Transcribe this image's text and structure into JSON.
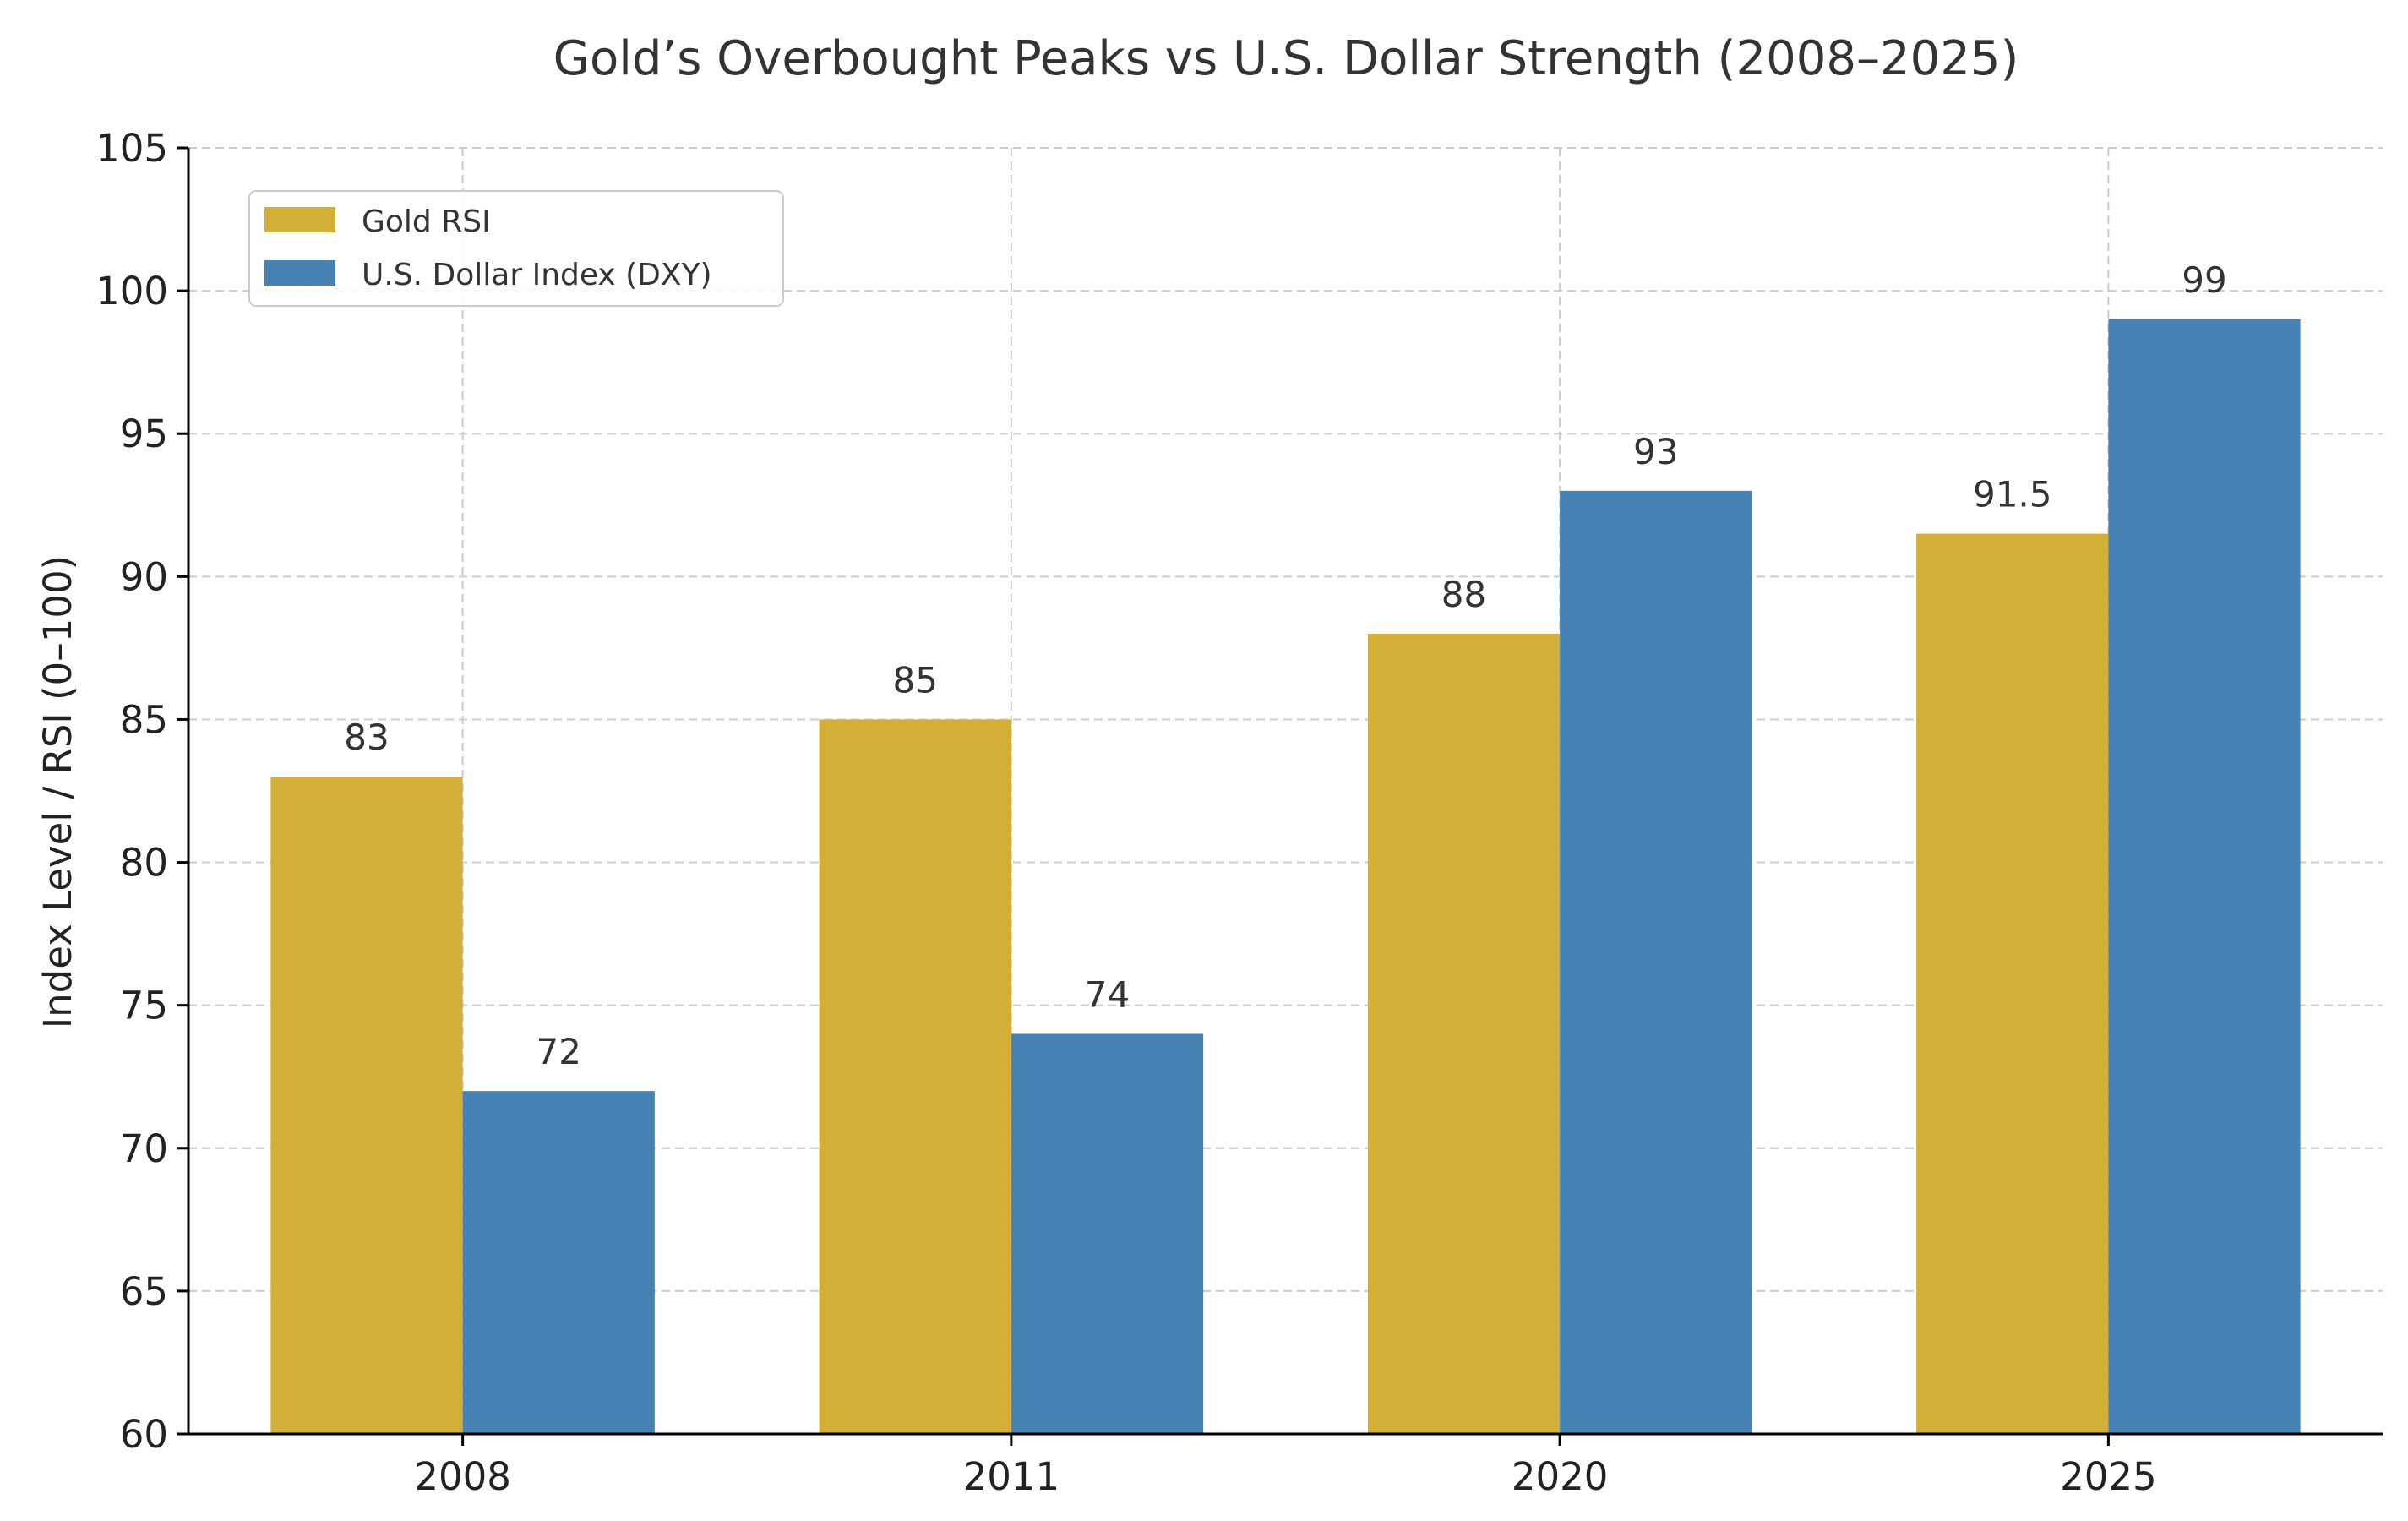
{
  "chart_data": {
    "type": "bar",
    "title": "Gold’s Overbought Peaks vs U.S. Dollar Strength (2008–2025)",
    "xlabel": "",
    "ylabel": "Index Level / RSI (0–100)",
    "categories": [
      "2008",
      "2011",
      "2020",
      "2025"
    ],
    "ylim": [
      60,
      105
    ],
    "yticks": [
      60,
      65,
      70,
      75,
      80,
      85,
      90,
      95,
      100,
      105
    ],
    "grid": true,
    "legend_position": "top-left",
    "series": [
      {
        "name": "Gold RSI",
        "values": [
          83,
          85,
          88,
          91.5
        ],
        "color": "#D4AF37"
      },
      {
        "name": "U.S. Dollar Index (DXY)",
        "values": [
          72,
          74,
          93,
          99
        ],
        "color": "#4682B4"
      }
    ]
  }
}
